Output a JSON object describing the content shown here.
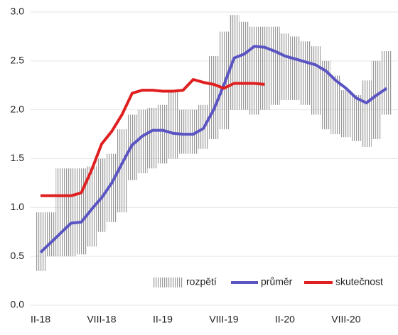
{
  "chart_data": {
    "type": "line",
    "categories": [
      "II-18",
      null,
      null,
      null,
      null,
      null,
      "VIII-18",
      null,
      null,
      null,
      null,
      null,
      "II-19",
      null,
      null,
      null,
      null,
      null,
      "VIII-19",
      null,
      null,
      null,
      null,
      null,
      "II-20",
      null,
      null,
      null,
      null,
      null,
      "VIII-20",
      null,
      null,
      null,
      null
    ],
    "ylim": [
      0,
      3
    ],
    "yticks": [
      {
        "value": 0,
        "label": "0.0"
      },
      {
        "value": 0.5,
        "label": "0.5"
      },
      {
        "value": 1,
        "label": "1.0"
      },
      {
        "value": 1.5,
        "label": "1.5"
      },
      {
        "value": 2,
        "label": "2.0"
      },
      {
        "value": 2.5,
        "label": "2.5"
      },
      {
        "value": 3,
        "label": "3.0"
      }
    ],
    "grid": true,
    "legend": "bottom-right",
    "range": {
      "name": "rozpětí",
      "color": "#9a9a9a",
      "low": [
        0.35,
        0.5,
        0.5,
        0.5,
        0.52,
        0.6,
        0.75,
        0.85,
        0.95,
        1.28,
        1.35,
        1.4,
        1.45,
        1.5,
        1.55,
        1.55,
        1.6,
        1.7,
        1.8,
        2.0,
        2.0,
        1.95,
        2.0,
        2.05,
        2.1,
        2.1,
        2.05,
        1.95,
        1.8,
        1.75,
        1.72,
        1.68,
        1.62,
        1.7,
        1.95
      ],
      "high": [
        0.95,
        0.95,
        1.4,
        1.4,
        1.4,
        1.42,
        1.5,
        1.55,
        1.8,
        1.95,
        2.0,
        2.02,
        2.05,
        2.2,
        2.0,
        2.0,
        2.05,
        2.55,
        2.8,
        2.97,
        2.9,
        2.85,
        2.85,
        2.85,
        2.78,
        2.75,
        2.7,
        2.65,
        2.5,
        2.35,
        2.2,
        2.15,
        2.3,
        2.5,
        2.6
      ]
    },
    "series": [
      {
        "name": "průměr",
        "color": "#5b55c3",
        "values": [
          0.54,
          0.64,
          0.74,
          0.84,
          0.85,
          0.98,
          1.1,
          1.25,
          1.45,
          1.64,
          1.73,
          1.79,
          1.79,
          1.76,
          1.75,
          1.75,
          1.81,
          2.0,
          2.25,
          2.53,
          2.57,
          2.65,
          2.64,
          2.6,
          2.55,
          2.52,
          2.49,
          2.46,
          2.4,
          2.3,
          2.22,
          2.12,
          2.07,
          2.15,
          2.22
        ]
      },
      {
        "name": "skutečnost",
        "color": "#e02020",
        "values": [
          1.12,
          1.12,
          1.12,
          1.12,
          1.15,
          1.38,
          1.65,
          1.78,
          1.95,
          2.17,
          2.2,
          2.2,
          2.19,
          2.19,
          2.2,
          2.31,
          2.28,
          2.26,
          2.22,
          2.27,
          2.27,
          2.27,
          2.26,
          null,
          null,
          null,
          null,
          null,
          null,
          null,
          null,
          null,
          null,
          null,
          null
        ]
      }
    ]
  }
}
